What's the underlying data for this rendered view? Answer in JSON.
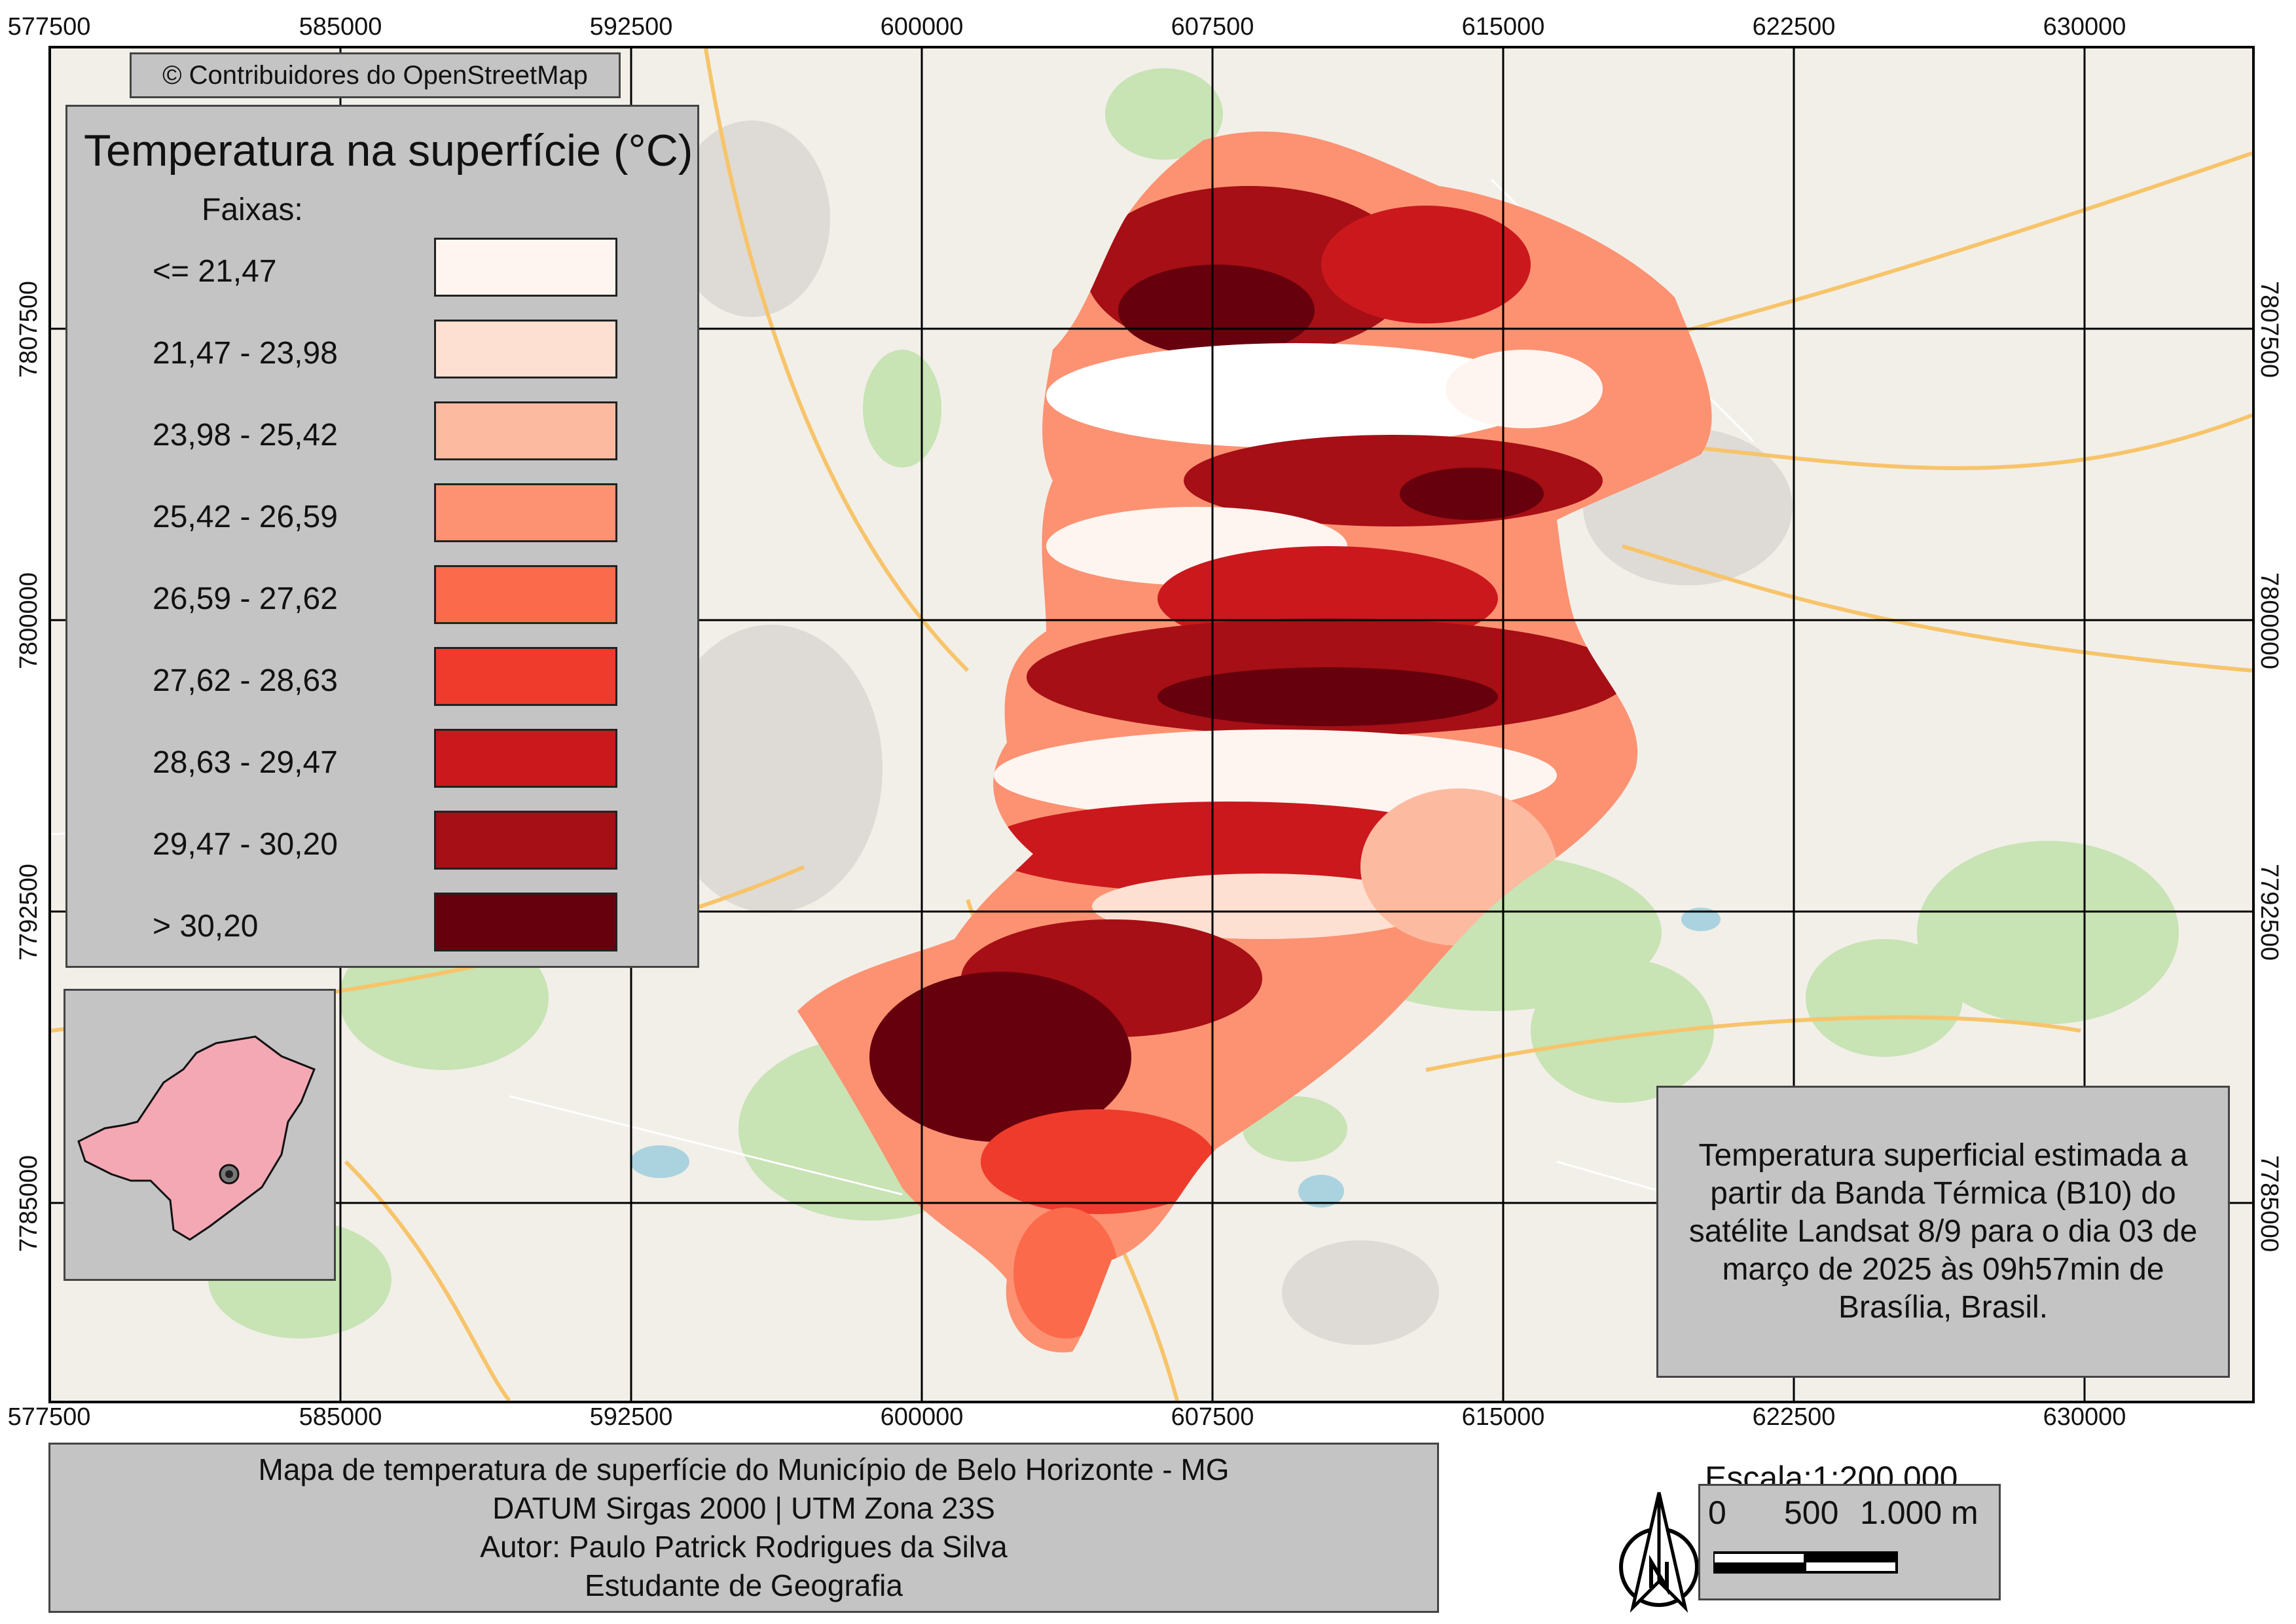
{
  "map": {
    "attribution": "© Contribuidores do OpenStreetMap",
    "grid_x_labels": [
      "577500",
      "585000",
      "592500",
      "600000",
      "607500",
      "615000",
      "622500",
      "630000"
    ],
    "grid_y_labels": [
      "7807500",
      "7800000",
      "7792500",
      "7785000"
    ]
  },
  "legend": {
    "title": "Temperatura na superfície (°C)",
    "subtitle": "Faixas:",
    "classes": [
      {
        "label": "<= 21,47",
        "color": "#fff5f0"
      },
      {
        "label": "21,47 - 23,98",
        "color": "#fee0d2"
      },
      {
        "label": "23,98 - 25,42",
        "color": "#fcbba1"
      },
      {
        "label": "25,42 - 26,59",
        "color": "#fc9272"
      },
      {
        "label": "26,59 - 27,62",
        "color": "#fb6a4a"
      },
      {
        "label": "27,62 - 28,63",
        "color": "#ef3b2c"
      },
      {
        "label": "28,63 - 29,47",
        "color": "#cb181d"
      },
      {
        "label": "29,47 - 30,20",
        "color": "#a50f15"
      },
      {
        "label": "> 30,20",
        "color": "#67000d"
      }
    ]
  },
  "info": {
    "text": "Temperatura superficial estimada a partir da Banda Térmica (B10) do satélite Landsat 8/9 para o dia 03 de março de 2025 às 09h57min de Brasília, Brasil."
  },
  "title_block": {
    "line1": "Mapa de temperatura de superfície do Município de Belo Horizonte - MG",
    "line2": "DATUM Sirgas 2000 | UTM Zona 23S",
    "line3": "Autor: Paulo Patrick Rodrigues da Silva",
    "line4": "Estudante de Geografia"
  },
  "scale": {
    "title": "Escala:1:200.000",
    "tick_0": "0",
    "tick_1": "500",
    "tick_2": "1.000 m"
  },
  "colors": {
    "panel_bg": "#c4c4c4",
    "basemap_bg": "#f2efe9",
    "inset_state": "#f4a8b4"
  }
}
